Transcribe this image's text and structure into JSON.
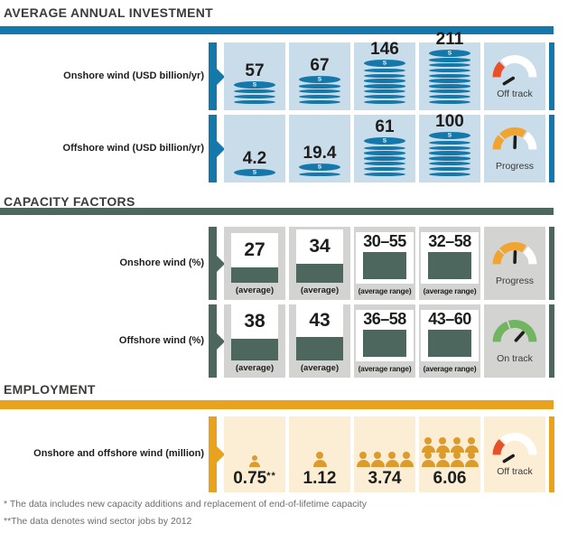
{
  "investment": {
    "title": "AVERAGE ANNUAL INVESTMENT",
    "rows": [
      {
        "label": "Onshore wind (USD billion/yr)",
        "values": [
          "57",
          "67",
          "146",
          "211"
        ],
        "coins": [
          4,
          5,
          8,
          10
        ],
        "gauge": {
          "label": "Off track",
          "kind": "off-track"
        }
      },
      {
        "label": "Offshore wind (USD billion/yr)",
        "values": [
          "4.2",
          "19.4",
          "61",
          "100"
        ],
        "coins": [
          1,
          2,
          7,
          8
        ],
        "gauge": {
          "label": "Progress",
          "kind": "progress"
        }
      }
    ]
  },
  "capacity": {
    "title": "CAPACITY FACTORS",
    "rows": [
      {
        "label": "Onshore wind (%)",
        "cells": [
          {
            "value": "27",
            "caption": "(average)",
            "type": "average",
            "fill": 27
          },
          {
            "value": "34",
            "caption": "(average)",
            "type": "average",
            "fill": 34
          },
          {
            "value": "30–55",
            "caption": "(average range)",
            "type": "range"
          },
          {
            "value": "32–58",
            "caption": "(average range)",
            "type": "range"
          }
        ],
        "gauge": {
          "label": "Progress",
          "kind": "progress"
        }
      },
      {
        "label": "Offshore wind (%)",
        "cells": [
          {
            "value": "38",
            "caption": "(average)",
            "type": "average",
            "fill": 38
          },
          {
            "value": "43",
            "caption": "(average)",
            "type": "average",
            "fill": 43
          },
          {
            "value": "36–58",
            "caption": "(average range)",
            "type": "range"
          },
          {
            "value": "43–60",
            "caption": "(average range)",
            "type": "range"
          }
        ],
        "gauge": {
          "label": "On track",
          "kind": "on-track"
        }
      }
    ]
  },
  "employment": {
    "title": "EMPLOYMENT",
    "rows": [
      {
        "label": "Onshore and offshore wind (million)",
        "cells": [
          {
            "value": "0.75",
            "marker": "**",
            "people": {
              "rows": [
                1
              ],
              "scale": 0.78
            }
          },
          {
            "value": "1.12",
            "people": {
              "rows": [
                1
              ],
              "scale": 1
            }
          },
          {
            "value": "3.74",
            "people": {
              "rows": [
                4
              ],
              "scale": 1
            }
          },
          {
            "value": "6.06",
            "people": {
              "rows": [
                4,
                4
              ],
              "scale": 1
            }
          }
        ],
        "gauge": {
          "label": "Off track",
          "kind": "off-track"
        }
      }
    ]
  },
  "footnotes": [
    "* The data includes new capacity additions and replacement of end-of-lifetime capacity",
    "**The data denotes wind sector jobs by 2012"
  ],
  "colors": {
    "accent_blue": "#1478aa",
    "cell_blue": "#c8dcea",
    "accent_slate": "#4d665e",
    "cell_gray": "#d3d4d2",
    "accent_orange": "#e8a21e",
    "cell_cream": "#fceed5",
    "person_orange": "#dd9b2b",
    "gauge_red": "#e8502a",
    "gauge_amber": "#f2a431",
    "gauge_green": "#72b561",
    "ink": "#1d1d1b"
  },
  "chart_data": [
    {
      "type": "bar",
      "title": "AVERAGE ANNUAL INVESTMENT",
      "series": [
        {
          "name": "Onshore wind (USD billion/yr)",
          "values": [
            57,
            67,
            146,
            211
          ],
          "status": "Off track"
        },
        {
          "name": "Offshore wind (USD billion/yr)",
          "values": [
            4.2,
            19.4,
            61,
            100
          ],
          "status": "Progress"
        }
      ]
    },
    {
      "type": "bar",
      "title": "CAPACITY FACTORS",
      "series": [
        {
          "name": "Onshore wind (%)",
          "values": [
            "27 (average)",
            "34 (average)",
            "30–55 (average range)",
            "32–58 (average range)"
          ],
          "status": "Progress"
        },
        {
          "name": "Offshore wind (%)",
          "values": [
            "38 (average)",
            "43 (average)",
            "36–58 (average range)",
            "43–60 (average range)"
          ],
          "status": "On track"
        }
      ]
    },
    {
      "type": "bar",
      "title": "EMPLOYMENT",
      "series": [
        {
          "name": "Onshore and offshore wind (million)",
          "values": [
            0.75,
            1.12,
            3.74,
            6.06
          ],
          "status": "Off track"
        }
      ]
    }
  ]
}
